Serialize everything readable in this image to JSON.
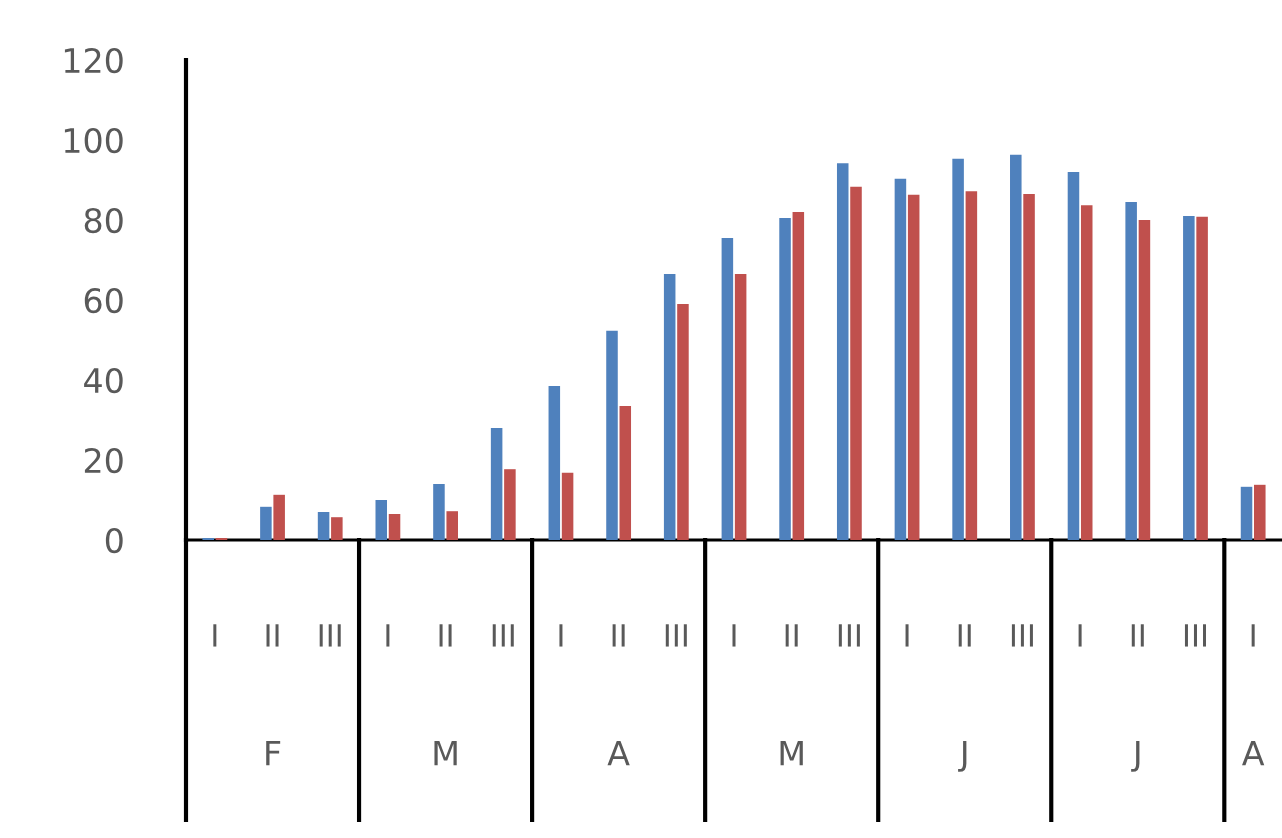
{
  "chart_data": {
    "type": "bar",
    "categories": [
      "I",
      "II",
      "III",
      "I",
      "II",
      "III",
      "I",
      "II",
      "III",
      "I",
      "II",
      "III",
      "I",
      "II",
      "III",
      "I",
      "II",
      "III",
      "I"
    ],
    "annotations": [
      "F",
      "M",
      "A",
      "M",
      "J",
      "J",
      "A"
    ],
    "series": [
      {
        "color": "#4f81bd",
        "values": [
          0.5,
          8.3,
          7,
          10,
          14,
          28,
          38.5,
          52.3,
          66.5,
          75.5,
          80.5,
          94.2,
          90.3,
          95.3,
          96.3,
          92,
          84.5,
          81,
          13.3
        ]
      },
      {
        "color": "#c0504d",
        "values": [
          0.5,
          11.3,
          5.7,
          6.5,
          7.2,
          17.7,
          16.8,
          33.5,
          59,
          66.5,
          82,
          88.3,
          86.3,
          87.2,
          86.5,
          83.7,
          80,
          80.8,
          13.8
        ]
      }
    ],
    "ylim": [
      0,
      120
    ],
    "yticks": [
      0,
      20,
      40,
      60,
      80,
      100,
      120
    ],
    "grid": false,
    "legend": false
  }
}
